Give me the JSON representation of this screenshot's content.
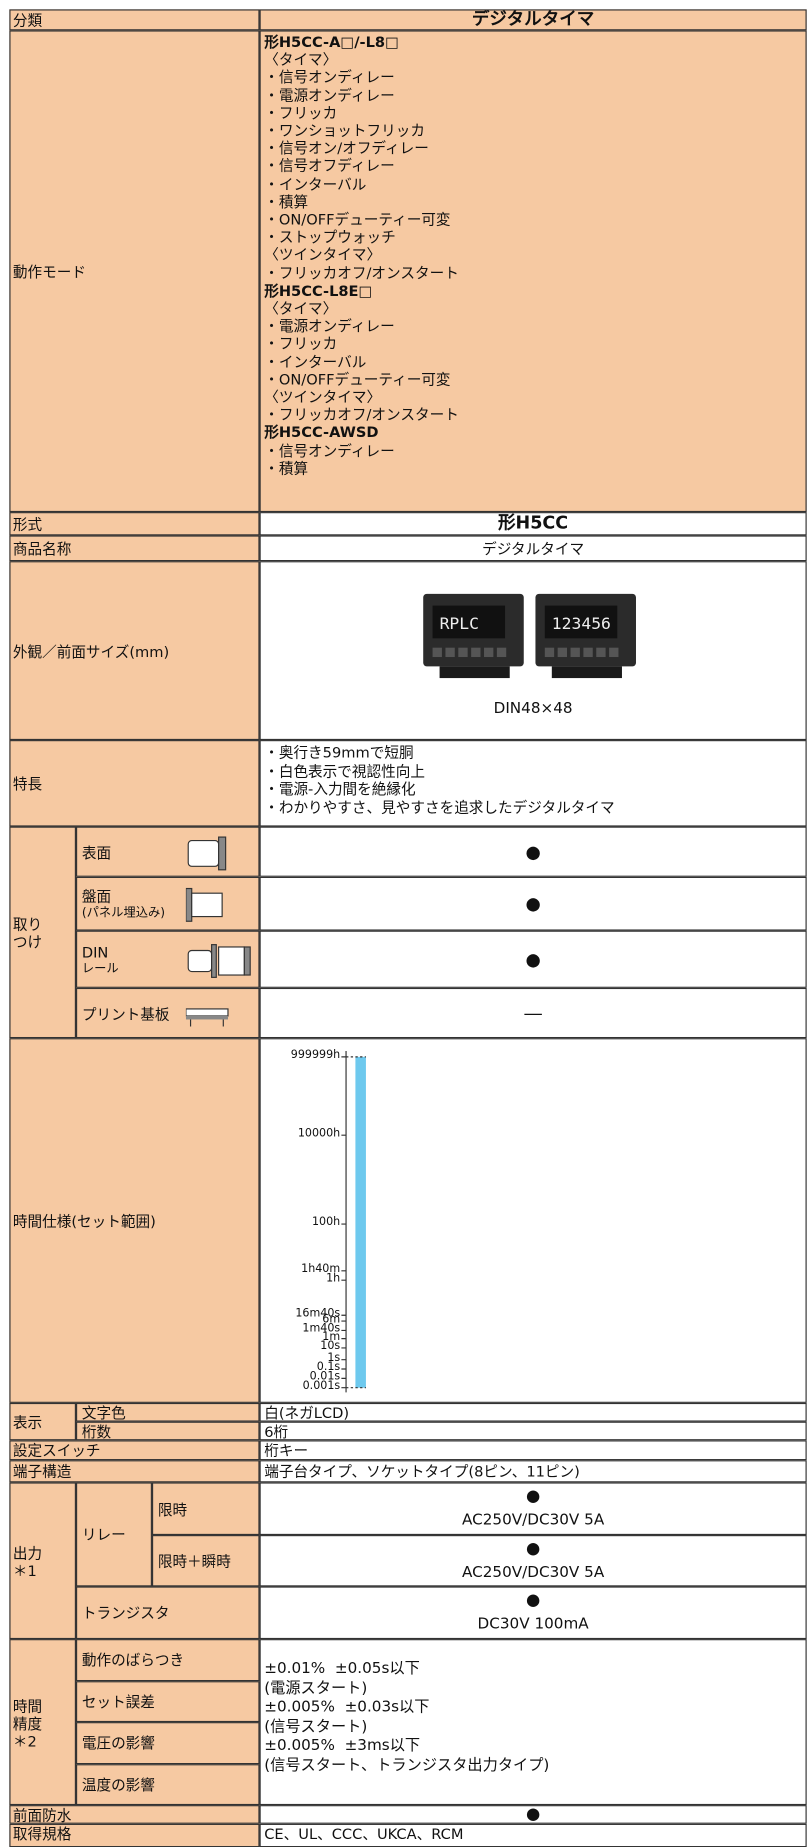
{
  "header": {
    "label": "分類",
    "value": "デジタルタイマ"
  },
  "operation_mode": {
    "label": "動作モード",
    "lines": [
      "形H5CC-A□/-L8□",
      "〈タイマ〉",
      "・信号オンディレー",
      "・電源オンディレー",
      "・フリッカ",
      "・ワンショットフリッカ",
      "・信号オン/オフディレー",
      "・信号オフディレー",
      "・インターバル",
      "・積算",
      "・ON/OFFデューティー可変",
      "・ストップウォッチ",
      "〈ツインタイマ〉",
      "・フリッカオフ/オンスタート",
      "形H5CC-L8E□",
      "〈タイマ〉",
      "・電源オンディレー",
      "・フリッカ",
      "・インターバル",
      "・ON/OFFデューティー可変",
      "〈ツインタイマ〉",
      "・フリッカオフ/オンスタート",
      "形H5CC-AWSD",
      "・信号オンディレー",
      "・積算"
    ]
  },
  "model": {
    "label": "形式",
    "value": "形H5CC"
  },
  "product_name": {
    "label": "商品名称",
    "value": "デジタルタイマ"
  },
  "appearance": {
    "label": "外観／前面サイズ(mm)",
    "caption": "DIN48×48"
  },
  "features": {
    "label": "特長",
    "lines": [
      "・奥行き59mmで短胴",
      "・白色表示で視認性向上",
      "・電源-入力間を絶縁化",
      "・わかりやすさ、見やすさを追求したデジタルタイマ"
    ]
  },
  "mounting": {
    "label": [
      "取り",
      "つけ"
    ],
    "rows": [
      {
        "label": [
          "表面"
        ],
        "value": "●"
      },
      {
        "label": [
          "盤面",
          "(パネル埋込み)"
        ],
        "value": "●"
      },
      {
        "label": [
          "DIN",
          "レール"
        ],
        "value": "●"
      },
      {
        "label": [
          "プリント基板"
        ],
        "value": "―"
      }
    ]
  },
  "time_spec": {
    "label": "時間仕様(セット範囲)",
    "ticks": [
      "999999h",
      "10000h",
      "100h",
      "1h40m",
      "1h",
      "16m40s",
      "6m",
      "1m40s",
      "1m",
      "10s",
      "1s",
      "0.1s",
      "0.01s",
      "0.001s"
    ]
  },
  "display": {
    "label": "表示",
    "rows": [
      {
        "label": "文字色",
        "value": "白(ネガLCD)"
      },
      {
        "label": "桁数",
        "value": "6桁"
      }
    ]
  },
  "setting_switch": {
    "label": "設定スイッチ",
    "value": "桁キー"
  },
  "terminal": {
    "label": "端子構造",
    "value": "端子台タイプ、ソケットタイプ(8ピン、11ピン)"
  },
  "output": {
    "label": [
      "出力",
      "＊1"
    ],
    "relay": {
      "label": "リレー",
      "rows": [
        {
          "label": "限時",
          "mark": "●",
          "value": "AC250V/DC30V 5A"
        },
        {
          "label": "限時＋瞬時",
          "mark": "●",
          "value": "AC250V/DC30V 5A"
        }
      ]
    },
    "transistor": {
      "label": "トランジスタ",
      "mark": "●",
      "value": "DC30V 100mA"
    }
  },
  "accuracy": {
    "label": [
      "時間",
      "精度",
      "＊2"
    ],
    "items": [
      "動作のばらつき",
      "セット誤差",
      "電圧の影響",
      "温度の影響"
    ],
    "lines": [
      "±0.01%  ±0.05s以下",
      "(電源スタート)",
      "±0.005%  ±0.03s以下",
      "(信号スタート)",
      "±0.005%  ±3ms以下",
      "(信号スタート、トランジスタ出力タイプ)"
    ]
  },
  "waterproof": {
    "label": "前面防水",
    "value": "●"
  },
  "standards": {
    "label": "取得規格",
    "value": "CE、UL、CCC、UKCA、RCM"
  }
}
